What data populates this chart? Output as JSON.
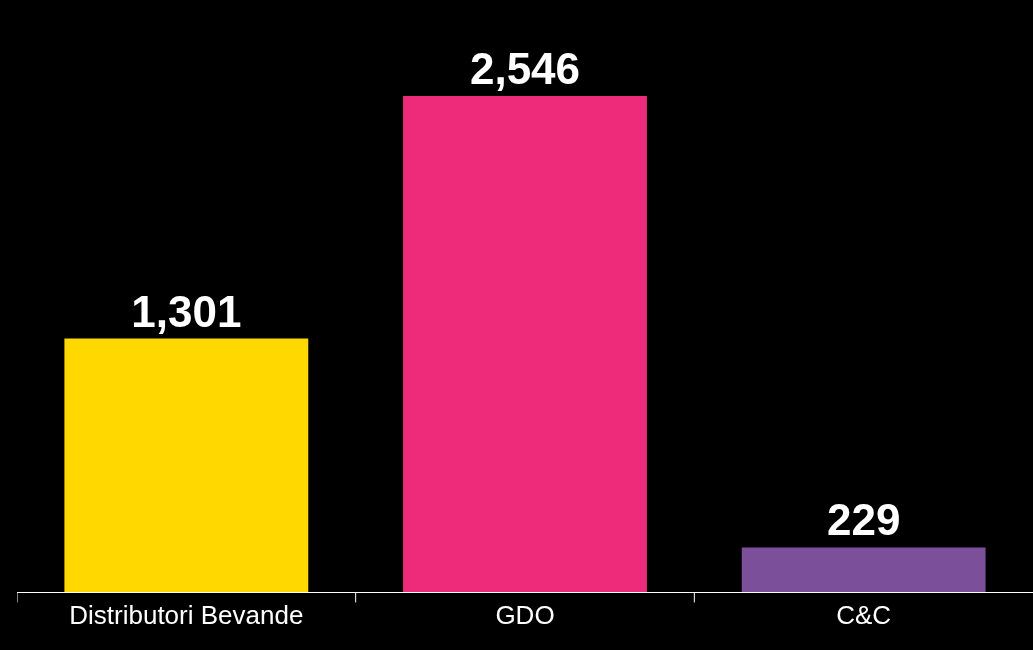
{
  "chart_data": {
    "type": "bar",
    "categories": [
      "Distributori Bevande",
      "GDO",
      "C&C"
    ],
    "values": [
      1301,
      2546,
      229
    ],
    "value_labels": [
      "1,301",
      "2,546",
      "229"
    ],
    "colors": [
      "#ffd800",
      "#ee2a7b",
      "#7b4f9a"
    ],
    "grid": false,
    "legend": false
  }
}
